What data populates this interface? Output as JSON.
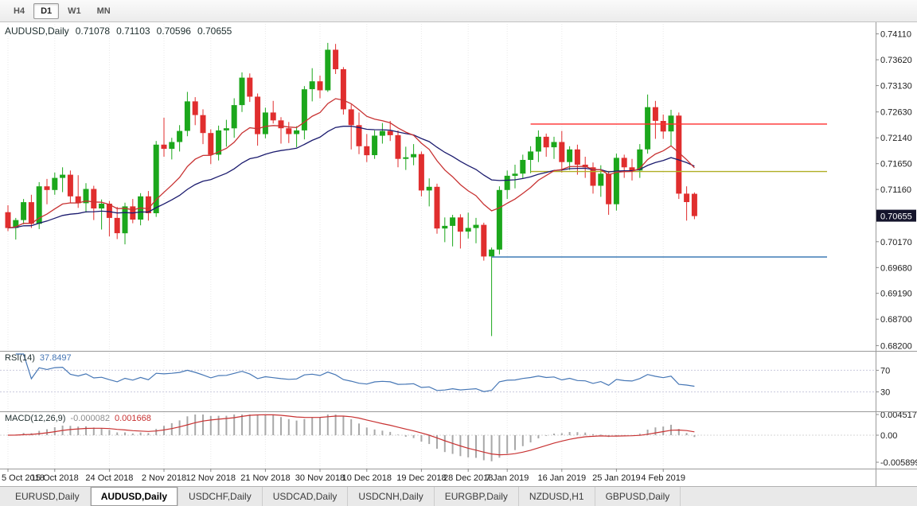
{
  "toolbar": {
    "periods": [
      {
        "label": "H4",
        "active": false
      },
      {
        "label": "D1",
        "active": true
      },
      {
        "label": "W1",
        "active": false
      },
      {
        "label": "MN",
        "active": false
      }
    ]
  },
  "header": {
    "symbol": "AUDUSD,Daily",
    "open": "0.71078",
    "high": "0.71103",
    "low": "0.70596",
    "close": "0.70655"
  },
  "chart_data": {
    "type": "candlestick",
    "symbol": "AUDUSD",
    "timeframe": "Daily",
    "colors": {
      "up": "#1CA71C",
      "down": "#E02E2E",
      "badge_bg": "#15152C"
    },
    "y_ticks": [
      "0.74110",
      "0.73620",
      "0.73130",
      "0.72630",
      "0.72140",
      "0.71650",
      "0.71160",
      "0.70170",
      "0.69680",
      "0.69190",
      "0.68700",
      "0.68200"
    ],
    "current_price": "0.70655",
    "x_labels": [
      {
        "i": 0,
        "label": "5 Oct 2018"
      },
      {
        "i": 6,
        "label": "15 Oct 2018"
      },
      {
        "i": 13,
        "label": "24 Oct 2018"
      },
      {
        "i": 20,
        "label": "2 Nov 2018"
      },
      {
        "i": 26,
        "label": "12 Nov 2018"
      },
      {
        "i": 33,
        "label": "21 Nov 2018"
      },
      {
        "i": 40,
        "label": "30 Nov 2018"
      },
      {
        "i": 46,
        "label": "10 Dec 2018"
      },
      {
        "i": 53,
        "label": "19 Dec 2018"
      },
      {
        "i": 59,
        "label": "28 Dec 2018"
      },
      {
        "i": 64,
        "label": "7 Jan 2019"
      },
      {
        "i": 71,
        "label": "16 Jan 2019"
      },
      {
        "i": 78,
        "label": "25 Jan 2019"
      },
      {
        "i": 84,
        "label": "4 Feb 2019"
      }
    ],
    "moving_averages": [
      {
        "type": "ema",
        "period": 30,
        "color": "#1B1B6E"
      },
      {
        "type": "ema",
        "period": 13,
        "color": "#C83232"
      }
    ],
    "levels": [
      {
        "price": 0.724,
        "color": "#FF2D2D",
        "from": 67,
        "to": 105
      },
      {
        "price": 0.715,
        "color": "#AFAE24",
        "from": 67,
        "to": 105
      },
      {
        "price": 0.6988,
        "color": "#3E7BB6",
        "from": 62,
        "to": 105
      }
    ],
    "rsi": {
      "label": "RSI(14)",
      "value": "37.8497",
      "period": 14,
      "color": "#4576B5",
      "levels": [
        70,
        30
      ],
      "axis_labels": [
        "70",
        "30"
      ]
    },
    "macd": {
      "label": "MACD(12,26,9)",
      "value_main": "-0.000082",
      "value_signal": "0.001668",
      "fast": 12,
      "slow": 26,
      "signal": 9,
      "hist_color": "#A8A8A8",
      "signal_color": "#C83232",
      "axis_labels": [
        "0.004517",
        "0.00",
        "-0.005899"
      ]
    },
    "candles": [
      [
        "2018.10.05",
        0.7073,
        0.7086,
        0.7037,
        0.7043
      ],
      [
        "2018.10.08",
        0.7043,
        0.7062,
        0.7021,
        0.7058
      ],
      [
        "2018.10.09",
        0.7058,
        0.7098,
        0.705,
        0.7092
      ],
      [
        "2018.10.10",
        0.7092,
        0.7106,
        0.7043,
        0.7051
      ],
      [
        "2018.10.11",
        0.7051,
        0.713,
        0.7041,
        0.7122
      ],
      [
        "2018.10.12",
        0.7122,
        0.7136,
        0.7088,
        0.7115
      ],
      [
        "2018.10.15",
        0.7115,
        0.7148,
        0.7106,
        0.7138
      ],
      [
        "2018.10.16",
        0.7138,
        0.7158,
        0.7111,
        0.7144
      ],
      [
        "2018.10.17",
        0.7144,
        0.7152,
        0.7091,
        0.7103
      ],
      [
        "2018.10.18",
        0.7103,
        0.7143,
        0.7081,
        0.709
      ],
      [
        "2018.10.19",
        0.709,
        0.7128,
        0.7072,
        0.7117
      ],
      [
        "2018.10.22",
        0.7117,
        0.7123,
        0.7058,
        0.708
      ],
      [
        "2018.10.23",
        0.708,
        0.7097,
        0.704,
        0.7089
      ],
      [
        "2018.10.24",
        0.7089,
        0.7094,
        0.7027,
        0.7062
      ],
      [
        "2018.10.25",
        0.7062,
        0.7083,
        0.7022,
        0.7033
      ],
      [
        "2018.10.26",
        0.7033,
        0.7091,
        0.7012,
        0.7084
      ],
      [
        "2018.10.29",
        0.7084,
        0.7098,
        0.7052,
        0.7059
      ],
      [
        "2018.10.30",
        0.7059,
        0.7109,
        0.7048,
        0.7103
      ],
      [
        "2018.10.31",
        0.7103,
        0.7113,
        0.7057,
        0.7071
      ],
      [
        "2018.11.01",
        0.7071,
        0.7208,
        0.7064,
        0.7201
      ],
      [
        "2018.11.02",
        0.7201,
        0.7252,
        0.7178,
        0.7193
      ],
      [
        "2018.11.05",
        0.7193,
        0.7214,
        0.7173,
        0.7206
      ],
      [
        "2018.11.06",
        0.7206,
        0.7238,
        0.7188,
        0.7227
      ],
      [
        "2018.11.07",
        0.7227,
        0.7301,
        0.7217,
        0.7283
      ],
      [
        "2018.11.08",
        0.7283,
        0.7291,
        0.7238,
        0.7257
      ],
      [
        "2018.11.09",
        0.7257,
        0.7268,
        0.7202,
        0.7223
      ],
      [
        "2018.11.12",
        0.7223,
        0.723,
        0.7164,
        0.7182
      ],
      [
        "2018.11.13",
        0.7182,
        0.7237,
        0.7171,
        0.7228
      ],
      [
        "2018.11.14",
        0.7228,
        0.7248,
        0.7197,
        0.7232
      ],
      [
        "2018.11.15",
        0.7232,
        0.7289,
        0.7214,
        0.7276
      ],
      [
        "2018.11.16",
        0.7276,
        0.7338,
        0.7263,
        0.7328
      ],
      [
        "2018.11.19",
        0.7328,
        0.7336,
        0.7282,
        0.7292
      ],
      [
        "2018.11.20",
        0.7292,
        0.7298,
        0.7199,
        0.7221
      ],
      [
        "2018.11.21",
        0.7221,
        0.7271,
        0.7213,
        0.7262
      ],
      [
        "2018.11.22",
        0.7262,
        0.7284,
        0.7241,
        0.7247
      ],
      [
        "2018.11.23",
        0.7247,
        0.7253,
        0.7203,
        0.7232
      ],
      [
        "2018.11.26",
        0.7232,
        0.7244,
        0.7204,
        0.7221
      ],
      [
        "2018.11.27",
        0.7221,
        0.7236,
        0.7196,
        0.7228
      ],
      [
        "2018.11.28",
        0.7228,
        0.7312,
        0.7211,
        0.7306
      ],
      [
        "2018.11.29",
        0.7306,
        0.7346,
        0.7283,
        0.7321
      ],
      [
        "2018.11.30",
        0.7321,
        0.7332,
        0.7289,
        0.7304
      ],
      [
        "2018.12.03",
        0.7304,
        0.7394,
        0.7301,
        0.7381
      ],
      [
        "2018.12.04",
        0.7381,
        0.7392,
        0.7335,
        0.7344
      ],
      [
        "2018.12.05",
        0.7344,
        0.7348,
        0.7258,
        0.7268
      ],
      [
        "2018.12.06",
        0.7268,
        0.7277,
        0.7192,
        0.7238
      ],
      [
        "2018.12.07",
        0.7238,
        0.7262,
        0.7183,
        0.7198
      ],
      [
        "2018.12.10",
        0.7198,
        0.7221,
        0.7168,
        0.7181
      ],
      [
        "2018.12.11",
        0.7181,
        0.7228,
        0.7174,
        0.7218
      ],
      [
        "2018.12.12",
        0.7218,
        0.7242,
        0.7203,
        0.7227
      ],
      [
        "2018.12.13",
        0.7227,
        0.7246,
        0.7208,
        0.7219
      ],
      [
        "2018.12.14",
        0.7219,
        0.7228,
        0.7158,
        0.7174
      ],
      [
        "2018.12.17",
        0.7174,
        0.7197,
        0.7153,
        0.7177
      ],
      [
        "2018.12.18",
        0.7177,
        0.7202,
        0.7162,
        0.7183
      ],
      [
        "2018.12.19",
        0.7183,
        0.7188,
        0.7103,
        0.7114
      ],
      [
        "2018.12.20",
        0.7114,
        0.7137,
        0.7084,
        0.7121
      ],
      [
        "2018.12.21",
        0.7121,
        0.7127,
        0.7032,
        0.7042
      ],
      [
        "2018.12.24",
        0.7042,
        0.7063,
        0.7016,
        0.7047
      ],
      [
        "2018.12.26",
        0.7047,
        0.7068,
        0.7008,
        0.7063
      ],
      [
        "2018.12.27",
        0.7063,
        0.7069,
        0.7004,
        0.7036
      ],
      [
        "2018.12.28",
        0.7036,
        0.7072,
        0.7023,
        0.7043
      ],
      [
        "2018.12.31",
        0.7043,
        0.7062,
        0.7014,
        0.7049
      ],
      [
        "2019.01.02",
        0.7049,
        0.7053,
        0.6981,
        0.6989
      ],
      [
        "2019.01.03",
        0.6989,
        0.7006,
        0.6838,
        0.7002
      ],
      [
        "2019.01.04",
        0.7002,
        0.7122,
        0.6993,
        0.7115
      ],
      [
        "2019.01.07",
        0.7115,
        0.7152,
        0.7098,
        0.7142
      ],
      [
        "2019.01.08",
        0.7142,
        0.7163,
        0.7118,
        0.7146
      ],
      [
        "2019.01.09",
        0.7146,
        0.7182,
        0.7136,
        0.7172
      ],
      [
        "2019.01.10",
        0.7172,
        0.7198,
        0.7147,
        0.7188
      ],
      [
        "2019.01.11",
        0.7188,
        0.7228,
        0.7168,
        0.7216
      ],
      [
        "2019.01.14",
        0.7216,
        0.7222,
        0.7178,
        0.7196
      ],
      [
        "2019.01.15",
        0.7196,
        0.7216,
        0.7174,
        0.7206
      ],
      [
        "2019.01.16",
        0.7206,
        0.7227,
        0.7148,
        0.7168
      ],
      [
        "2019.01.17",
        0.7168,
        0.7198,
        0.7153,
        0.7192
      ],
      [
        "2019.01.18",
        0.7192,
        0.7201,
        0.7144,
        0.7163
      ],
      [
        "2019.01.21",
        0.7163,
        0.7178,
        0.7138,
        0.7158
      ],
      [
        "2019.01.22",
        0.7158,
        0.7167,
        0.7108,
        0.7123
      ],
      [
        "2019.01.23",
        0.7123,
        0.7162,
        0.7102,
        0.7146
      ],
      [
        "2019.01.24",
        0.7146,
        0.7151,
        0.7068,
        0.7088
      ],
      [
        "2019.01.25",
        0.7088,
        0.7184,
        0.7076,
        0.7176
      ],
      [
        "2019.01.28",
        0.7176,
        0.7182,
        0.7138,
        0.7158
      ],
      [
        "2019.01.29",
        0.7158,
        0.7174,
        0.7133,
        0.7152
      ],
      [
        "2019.01.30",
        0.7152,
        0.7202,
        0.7138,
        0.7192
      ],
      [
        "2019.01.31",
        0.7192,
        0.7296,
        0.7184,
        0.7272
      ],
      [
        "2019.02.01",
        0.7272,
        0.7284,
        0.7212,
        0.7246
      ],
      [
        "2019.02.04",
        0.7246,
        0.7258,
        0.7212,
        0.7226
      ],
      [
        "2019.02.05",
        0.7226,
        0.7267,
        0.7198,
        0.7256
      ],
      [
        "2019.02.06",
        0.7256,
        0.7262,
        0.7098,
        0.7108
      ],
      [
        "2019.02.07",
        0.7108,
        0.7122,
        0.7057,
        0.7092
      ],
      [
        "2019.02.08",
        0.71078,
        0.71103,
        0.70596,
        0.70655
      ]
    ]
  },
  "tabs": [
    {
      "label": "EURUSD,Daily",
      "active": false
    },
    {
      "label": "AUDUSD,Daily",
      "active": true
    },
    {
      "label": "USDCHF,Daily",
      "active": false
    },
    {
      "label": "USDCAD,Daily",
      "active": false
    },
    {
      "label": "USDCNH,Daily",
      "active": false
    },
    {
      "label": "EURGBP,Daily",
      "active": false
    },
    {
      "label": "NZDUSD,H1",
      "active": false
    },
    {
      "label": "GBPUSD,Daily",
      "active": false
    }
  ]
}
